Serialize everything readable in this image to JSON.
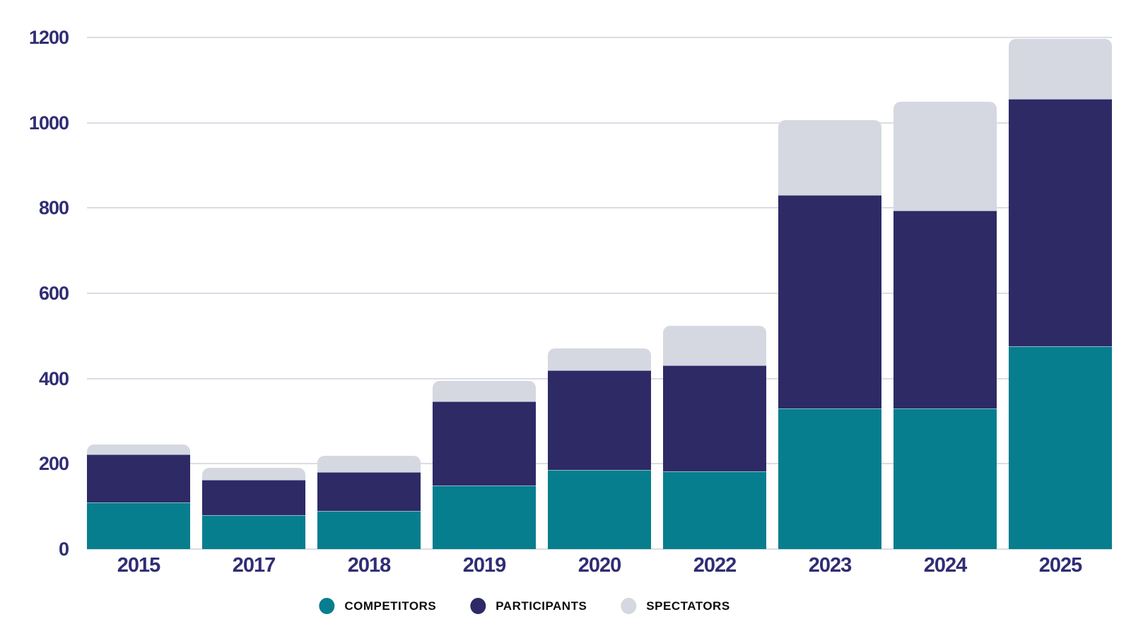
{
  "chart_data": {
    "type": "bar",
    "stacked": true,
    "title": "",
    "xlabel": "",
    "ylabel": "",
    "categories": [
      "2015",
      "2017",
      "2018",
      "2019",
      "2020",
      "2022",
      "2023",
      "2024",
      "2025"
    ],
    "series": [
      {
        "name": "COMPETITORS",
        "color": "#077e8e",
        "values": [
          110,
          80,
          90,
          150,
          185,
          183,
          330,
          330,
          476
        ]
      },
      {
        "name": "PARTICIPANTS",
        "color": "#2e2a66",
        "values": [
          112,
          82,
          90,
          196,
          235,
          248,
          500,
          464,
          580
        ]
      },
      {
        "name": "SPECTATORS",
        "color": "#d5d8e0",
        "values": [
          23,
          28,
          38,
          49,
          50,
          93,
          176,
          256,
          140
        ]
      }
    ],
    "stack_totals": [
      245,
      190,
      218,
      395,
      470,
      524,
      1006,
      1050,
      1196
    ],
    "ylim": [
      0,
      1200
    ],
    "yticks": [
      "0",
      "200",
      "400",
      "600",
      "800",
      "1000",
      "1200"
    ],
    "grid": true,
    "legend_position": "bottom"
  },
  "legend": {
    "items": [
      {
        "label": "COMPETITORS",
        "color": "#077e8e"
      },
      {
        "label": "PARTICIPANTS",
        "color": "#2e2a66"
      },
      {
        "label": "SPECTATORS",
        "color": "#d5d8e0"
      }
    ]
  },
  "colors": {
    "background": "#ffffff",
    "gridline": "#dcdce6",
    "axis_text": "#312d74",
    "legend_text": "#0d0d0d",
    "competitors": "#077e8e",
    "participants": "#2e2a66",
    "spectators": "#d5d8e0"
  }
}
